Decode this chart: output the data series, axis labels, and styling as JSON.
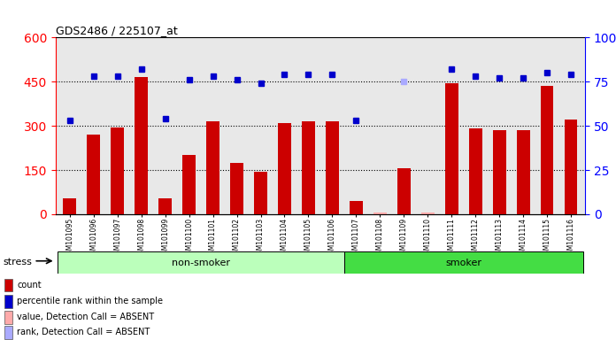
{
  "title": "GDS2486 / 225107_at",
  "samples": [
    "GSM101095",
    "GSM101096",
    "GSM101097",
    "GSM101098",
    "GSM101099",
    "GSM101100",
    "GSM101101",
    "GSM101102",
    "GSM101103",
    "GSM101104",
    "GSM101105",
    "GSM101106",
    "GSM101107",
    "GSM101108",
    "GSM101109",
    "GSM101110",
    "GSM101111",
    "GSM101112",
    "GSM101113",
    "GSM101114",
    "GSM101115",
    "GSM101116"
  ],
  "count_values": [
    55,
    270,
    295,
    465,
    55,
    200,
    315,
    175,
    145,
    310,
    315,
    315,
    45,
    5,
    155,
    5,
    445,
    290,
    285,
    285,
    435,
    320
  ],
  "count_absent": [
    false,
    false,
    false,
    false,
    false,
    false,
    false,
    false,
    false,
    false,
    false,
    false,
    false,
    true,
    false,
    true,
    false,
    false,
    false,
    false,
    false,
    false
  ],
  "percentile_values": [
    53,
    78,
    78,
    82,
    54,
    76,
    78,
    76,
    74,
    79,
    79,
    79,
    53,
    null,
    75,
    null,
    82,
    78,
    77,
    77,
    80,
    79
  ],
  "percentile_absent": [
    false,
    false,
    false,
    false,
    false,
    false,
    false,
    false,
    false,
    false,
    false,
    false,
    false,
    false,
    true,
    true,
    false,
    false,
    false,
    false,
    false,
    false
  ],
  "bar_color": "#cc0000",
  "bar_absent_color": "#ffaaaa",
  "marker_color": "#0000cc",
  "marker_absent_color": "#aaaaff",
  "left_yticks": [
    0,
    150,
    300,
    450,
    600
  ],
  "right_yticks": [
    0,
    25,
    50,
    75,
    100
  ],
  "left_ylim": [
    0,
    600
  ],
  "right_ylim": [
    0,
    100
  ],
  "grid_lines": [
    150,
    300,
    450
  ],
  "background_color": "#e8e8e8",
  "ns_color": "#bbffbb",
  "smoker_color": "#44dd44",
  "legend_items": [
    {
      "color": "#cc0000",
      "label": "count"
    },
    {
      "color": "#0000cc",
      "label": "percentile rank within the sample"
    },
    {
      "color": "#ffaaaa",
      "label": "value, Detection Call = ABSENT"
    },
    {
      "color": "#aaaaff",
      "label": "rank, Detection Call = ABSENT"
    }
  ]
}
